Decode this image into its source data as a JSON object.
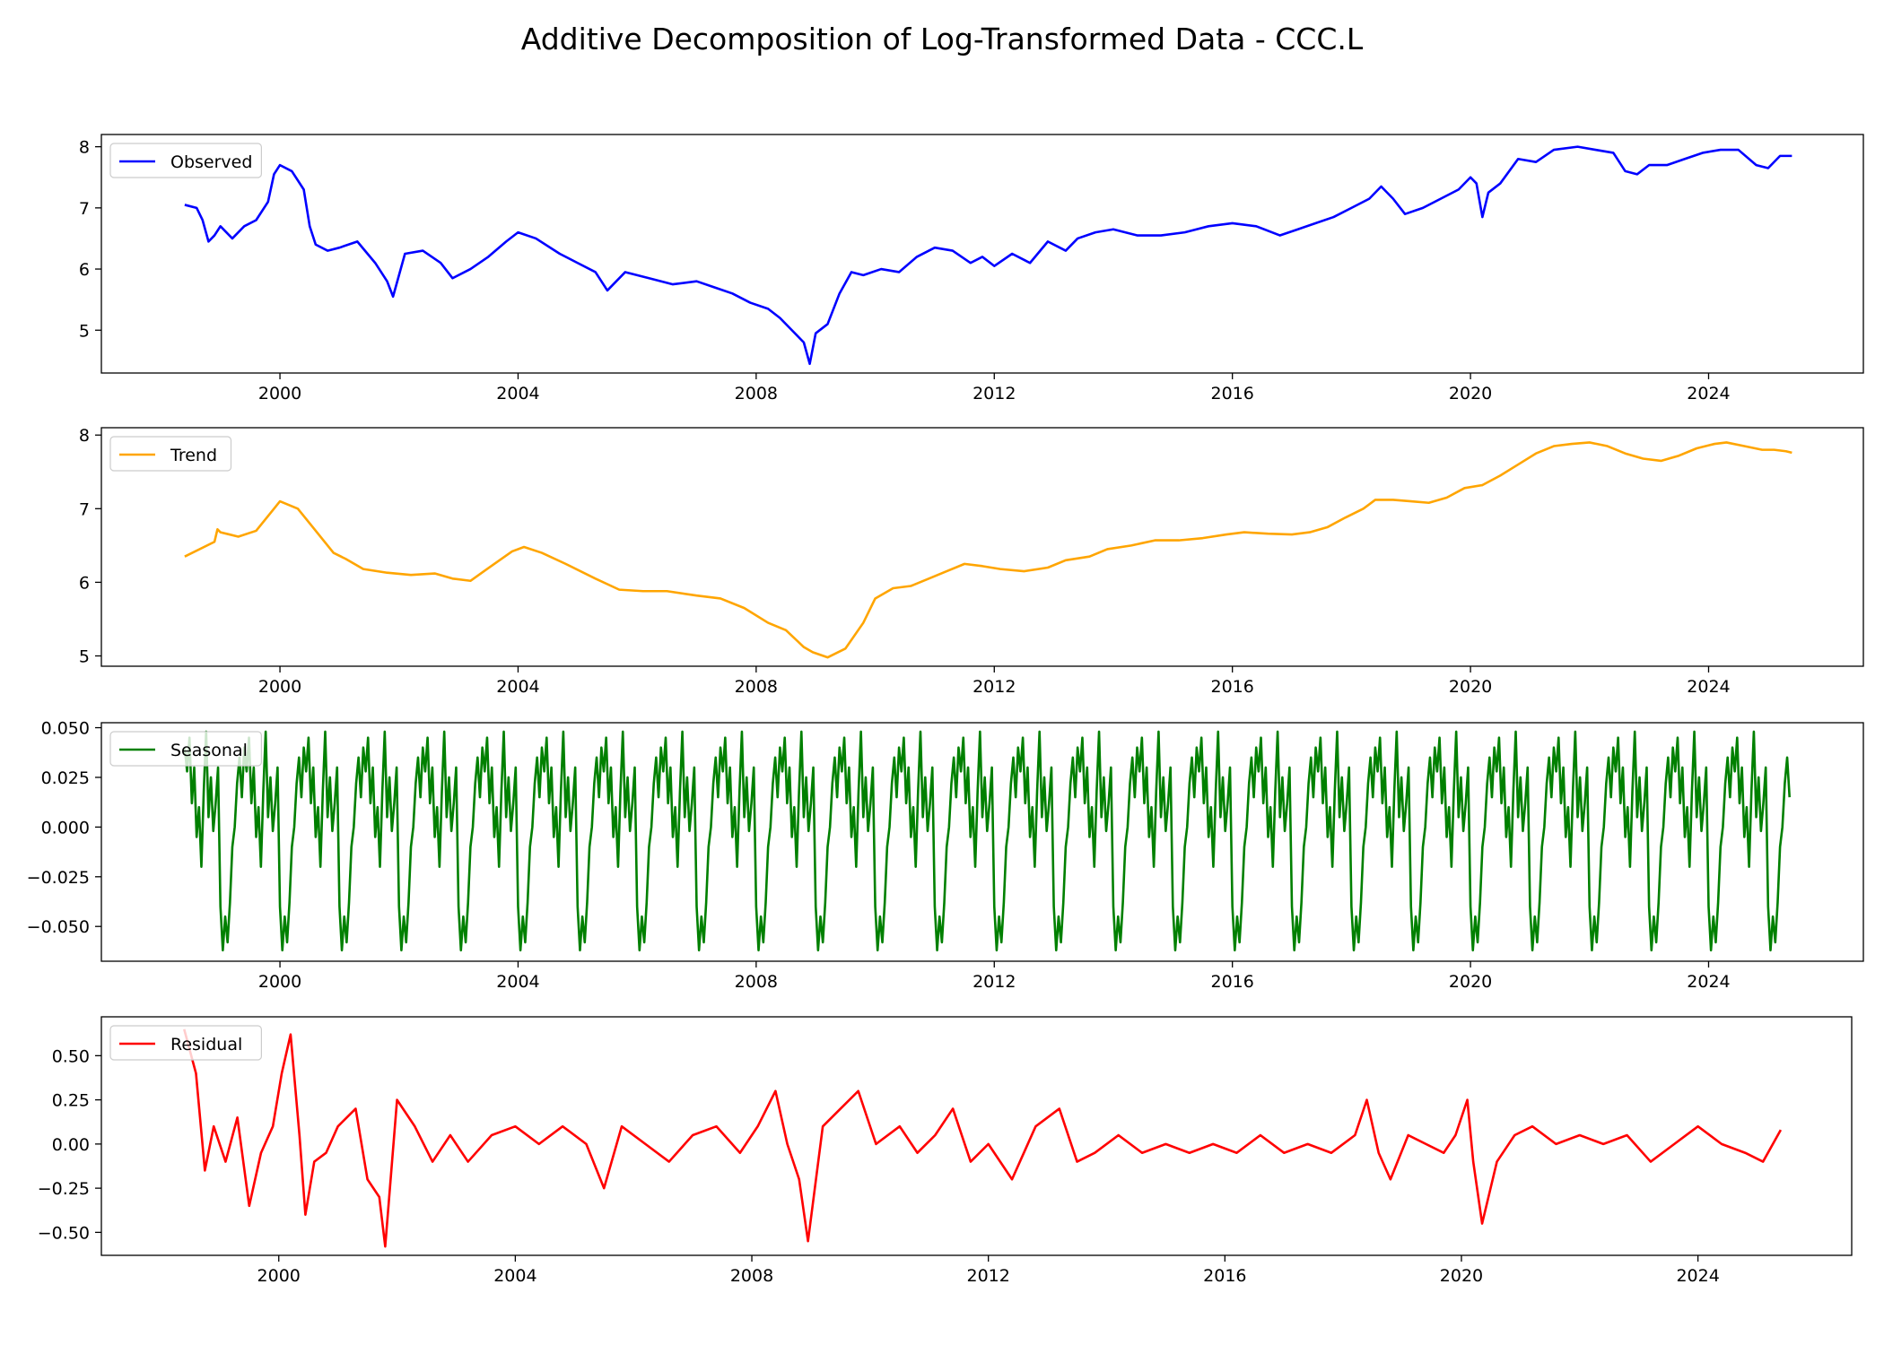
{
  "title": "Additive Decomposition of Log-Transformed Data - CCC.L",
  "chart_data": [
    {
      "type": "line",
      "legend": "upper-left",
      "grid": false,
      "xlim": [
        1997.0,
        2026.6
      ],
      "xticks": [
        "2000",
        "2004",
        "2008",
        "2012",
        "2016",
        "2020",
        "2024"
      ],
      "ylim": [
        4.3,
        8.2
      ],
      "yticks": [
        "5",
        "6",
        "7",
        "8"
      ],
      "series": [
        {
          "name": "Observed",
          "color": "#0000ff",
          "x": [
            1998.4,
            1998.6,
            1998.7,
            1998.8,
            1998.9,
            1999.0,
            1999.2,
            1999.4,
            1999.6,
            1999.8,
            1999.9,
            2000.0,
            2000.2,
            2000.4,
            2000.5,
            2000.6,
            2000.8,
            2001.0,
            2001.3,
            2001.6,
            2001.8,
            2001.9,
            2002.1,
            2002.4,
            2002.7,
            2002.9,
            2003.2,
            2003.5,
            2003.8,
            2004.0,
            2004.3,
            2004.7,
            2005.0,
            2005.3,
            2005.5,
            2005.8,
            2006.2,
            2006.6,
            2007.0,
            2007.3,
            2007.6,
            2007.9,
            2008.2,
            2008.4,
            2008.6,
            2008.8,
            2008.9,
            2009.0,
            2009.2,
            2009.4,
            2009.6,
            2009.8,
            2010.1,
            2010.4,
            2010.7,
            2011.0,
            2011.3,
            2011.6,
            2011.8,
            2012.0,
            2012.3,
            2012.6,
            2012.9,
            2013.2,
            2013.4,
            2013.7,
            2014.0,
            2014.4,
            2014.8,
            2015.2,
            2015.6,
            2016.0,
            2016.4,
            2016.8,
            2017.1,
            2017.4,
            2017.7,
            2018.0,
            2018.3,
            2018.5,
            2018.7,
            2018.9,
            2019.2,
            2019.5,
            2019.8,
            2020.0,
            2020.1,
            2020.2,
            2020.3,
            2020.5,
            2020.8,
            2021.1,
            2021.4,
            2021.8,
            2022.1,
            2022.4,
            2022.6,
            2022.8,
            2023.0,
            2023.3,
            2023.6,
            2023.9,
            2024.2,
            2024.5,
            2024.8,
            2025.0,
            2025.2,
            2025.4
          ],
          "y": [
            7.05,
            7.0,
            6.8,
            6.45,
            6.55,
            6.7,
            6.5,
            6.7,
            6.8,
            7.1,
            7.55,
            7.7,
            7.6,
            7.3,
            6.7,
            6.4,
            6.3,
            6.35,
            6.45,
            6.1,
            5.8,
            5.55,
            6.25,
            6.3,
            6.1,
            5.85,
            6.0,
            6.2,
            6.45,
            6.6,
            6.5,
            6.25,
            6.1,
            5.95,
            5.65,
            5.95,
            5.85,
            5.75,
            5.8,
            5.7,
            5.6,
            5.45,
            5.35,
            5.2,
            5.0,
            4.8,
            4.45,
            4.95,
            5.1,
            5.6,
            5.95,
            5.9,
            6.0,
            5.95,
            6.2,
            6.35,
            6.3,
            6.1,
            6.2,
            6.05,
            6.25,
            6.1,
            6.45,
            6.3,
            6.5,
            6.6,
            6.65,
            6.55,
            6.55,
            6.6,
            6.7,
            6.75,
            6.7,
            6.55,
            6.65,
            6.75,
            6.85,
            7.0,
            7.15,
            7.35,
            7.15,
            6.9,
            7.0,
            7.15,
            7.3,
            7.5,
            7.4,
            6.85,
            7.25,
            7.4,
            7.8,
            7.75,
            7.95,
            8.0,
            7.95,
            7.9,
            7.6,
            7.55,
            7.7,
            7.7,
            7.8,
            7.9,
            7.95,
            7.95,
            7.7,
            7.65,
            7.85,
            7.85
          ]
        }
      ]
    },
    {
      "type": "line",
      "legend": "upper-left",
      "grid": false,
      "xlim": [
        1997.0,
        2026.6
      ],
      "xticks": [
        "2000",
        "2004",
        "2008",
        "2012",
        "2016",
        "2020",
        "2024"
      ],
      "ylim": [
        4.86,
        8.1
      ],
      "yticks": [
        "5",
        "6",
        "7",
        "8"
      ],
      "series": [
        {
          "name": "Trend",
          "color": "#ffa500",
          "x": [
            1998.4,
            1998.9,
            1998.95,
            1999.0,
            1999.3,
            1999.6,
            1999.9,
            2000.0,
            2000.3,
            2000.5,
            2000.9,
            2001.1,
            2001.4,
            2001.8,
            2002.2,
            2002.6,
            2002.9,
            2003.2,
            2003.6,
            2003.9,
            2004.1,
            2004.4,
            2004.8,
            2005.3,
            2005.7,
            2006.1,
            2006.5,
            2007.0,
            2007.4,
            2007.8,
            2008.2,
            2008.5,
            2008.8,
            2008.95,
            2009.2,
            2009.5,
            2009.8,
            2010.0,
            2010.3,
            2010.6,
            2010.9,
            2011.2,
            2011.5,
            2011.8,
            2012.1,
            2012.5,
            2012.9,
            2013.2,
            2013.6,
            2013.9,
            2014.3,
            2014.7,
            2015.1,
            2015.5,
            2015.9,
            2016.2,
            2016.6,
            2017.0,
            2017.3,
            2017.6,
            2017.9,
            2018.2,
            2018.4,
            2018.7,
            2019.0,
            2019.3,
            2019.6,
            2019.9,
            2020.2,
            2020.5,
            2020.8,
            2021.1,
            2021.4,
            2021.7,
            2022.0,
            2022.3,
            2022.6,
            2022.9,
            2023.2,
            2023.5,
            2023.8,
            2024.1,
            2024.3,
            2024.6,
            2024.9,
            2025.1,
            2025.3,
            2025.4
          ],
          "y": [
            6.35,
            6.55,
            6.72,
            6.68,
            6.62,
            6.7,
            7.0,
            7.1,
            7.0,
            6.8,
            6.4,
            6.32,
            6.18,
            6.13,
            6.1,
            6.12,
            6.05,
            6.02,
            6.25,
            6.42,
            6.48,
            6.4,
            6.25,
            6.05,
            5.9,
            5.88,
            5.88,
            5.82,
            5.78,
            5.65,
            5.45,
            5.35,
            5.12,
            5.05,
            4.98,
            5.1,
            5.45,
            5.78,
            5.92,
            5.95,
            6.05,
            6.15,
            6.25,
            6.22,
            6.18,
            6.15,
            6.2,
            6.3,
            6.35,
            6.45,
            6.5,
            6.57,
            6.57,
            6.6,
            6.65,
            6.68,
            6.66,
            6.65,
            6.68,
            6.75,
            6.88,
            7.0,
            7.12,
            7.12,
            7.1,
            7.08,
            7.15,
            7.28,
            7.32,
            7.45,
            7.6,
            7.75,
            7.85,
            7.88,
            7.9,
            7.85,
            7.75,
            7.68,
            7.65,
            7.72,
            7.82,
            7.88,
            7.9,
            7.85,
            7.8,
            7.8,
            7.78,
            7.76
          ]
        }
      ]
    },
    {
      "type": "line",
      "legend": "upper-left",
      "grid": false,
      "xlim": [
        1997.0,
        2026.6
      ],
      "xticks": [
        "2000",
        "2004",
        "2008",
        "2012",
        "2016",
        "2020",
        "2024"
      ],
      "ylim": [
        -0.0675,
        0.0525
      ],
      "yticks": [
        "0.050",
        "0.025",
        "0.000",
        "−0.025",
        "−0.050"
      ],
      "period": 1.0,
      "x_start": 1998.4,
      "x_end": 2025.4,
      "series": [
        {
          "name": "Seasonal",
          "color": "#008000",
          "cycle_phase": [
            0.0,
            0.04,
            0.08,
            0.12,
            0.16,
            0.2,
            0.24,
            0.28,
            0.32,
            0.36,
            0.4,
            0.44,
            0.48,
            0.52,
            0.56,
            0.6,
            0.64,
            0.68,
            0.72,
            0.76,
            0.8,
            0.84,
            0.88,
            0.92,
            0.96
          ],
          "cycle_values": [
            0.04,
            0.028,
            0.045,
            0.012,
            0.03,
            -0.005,
            0.01,
            -0.02,
            0.018,
            0.048,
            0.005,
            0.025,
            -0.002,
            0.012,
            0.03,
            -0.04,
            -0.062,
            -0.045,
            -0.058,
            -0.038,
            -0.01,
            0.0,
            0.022,
            0.035,
            0.015
          ]
        }
      ]
    },
    {
      "type": "line",
      "legend": "upper-left",
      "grid": false,
      "xlim": [
        1997.0,
        2026.6
      ],
      "xticks": [
        "2000",
        "2004",
        "2008",
        "2012",
        "2016",
        "2020",
        "2024"
      ],
      "ylim": [
        -0.63,
        0.72
      ],
      "yticks": [
        "0.50",
        "0.25",
        "0.00",
        "−0.25",
        "−0.50"
      ],
      "series": [
        {
          "name": "Residual",
          "color": "#ff0000",
          "x": [
            1998.4,
            1998.6,
            1998.75,
            1998.9,
            1999.1,
            1999.3,
            1999.5,
            1999.7,
            1999.9,
            2000.05,
            2000.2,
            2000.35,
            2000.45,
            2000.6,
            2000.8,
            2001.0,
            2001.3,
            2001.5,
            2001.7,
            2001.8,
            2002.0,
            2002.3,
            2002.6,
            2002.9,
            2003.2,
            2003.6,
            2004.0,
            2004.4,
            2004.8,
            2005.2,
            2005.5,
            2005.8,
            2006.2,
            2006.6,
            2007.0,
            2007.4,
            2007.8,
            2008.1,
            2008.4,
            2008.6,
            2008.8,
            2008.95,
            2009.2,
            2009.5,
            2009.8,
            2010.1,
            2010.5,
            2010.8,
            2011.1,
            2011.4,
            2011.7,
            2012.0,
            2012.4,
            2012.8,
            2013.2,
            2013.5,
            2013.8,
            2014.2,
            2014.6,
            2015.0,
            2015.4,
            2015.8,
            2016.2,
            2016.6,
            2017.0,
            2017.4,
            2017.8,
            2018.2,
            2018.4,
            2018.6,
            2018.8,
            2019.1,
            2019.4,
            2019.7,
            2019.9,
            2020.1,
            2020.2,
            2020.35,
            2020.6,
            2020.9,
            2021.2,
            2021.6,
            2022.0,
            2022.4,
            2022.8,
            2023.2,
            2023.6,
            2024.0,
            2024.4,
            2024.8,
            2025.1,
            2025.4
          ],
          "y": [
            0.65,
            0.4,
            -0.15,
            0.1,
            -0.1,
            0.15,
            -0.35,
            -0.05,
            0.1,
            0.4,
            0.62,
            0.05,
            -0.4,
            -0.1,
            -0.05,
            0.1,
            0.2,
            -0.2,
            -0.3,
            -0.58,
            0.25,
            0.1,
            -0.1,
            0.05,
            -0.1,
            0.05,
            0.1,
            0.0,
            0.1,
            0.0,
            -0.25,
            0.1,
            0.0,
            -0.1,
            0.05,
            0.1,
            -0.05,
            0.1,
            0.3,
            0.0,
            -0.2,
            -0.55,
            0.1,
            0.2,
            0.3,
            0.0,
            0.1,
            -0.05,
            0.05,
            0.2,
            -0.1,
            0.0,
            -0.2,
            0.1,
            0.2,
            -0.1,
            -0.05,
            0.05,
            -0.05,
            0.0,
            -0.05,
            0.0,
            -0.05,
            0.05,
            -0.05,
            0.0,
            -0.05,
            0.05,
            0.25,
            -0.05,
            -0.2,
            0.05,
            0.0,
            -0.05,
            0.05,
            0.25,
            -0.1,
            -0.45,
            -0.1,
            0.05,
            0.1,
            0.0,
            0.05,
            0.0,
            0.05,
            -0.1,
            0.0,
            0.1,
            0.0,
            -0.05,
            -0.1,
            0.08
          ]
        }
      ]
    }
  ]
}
